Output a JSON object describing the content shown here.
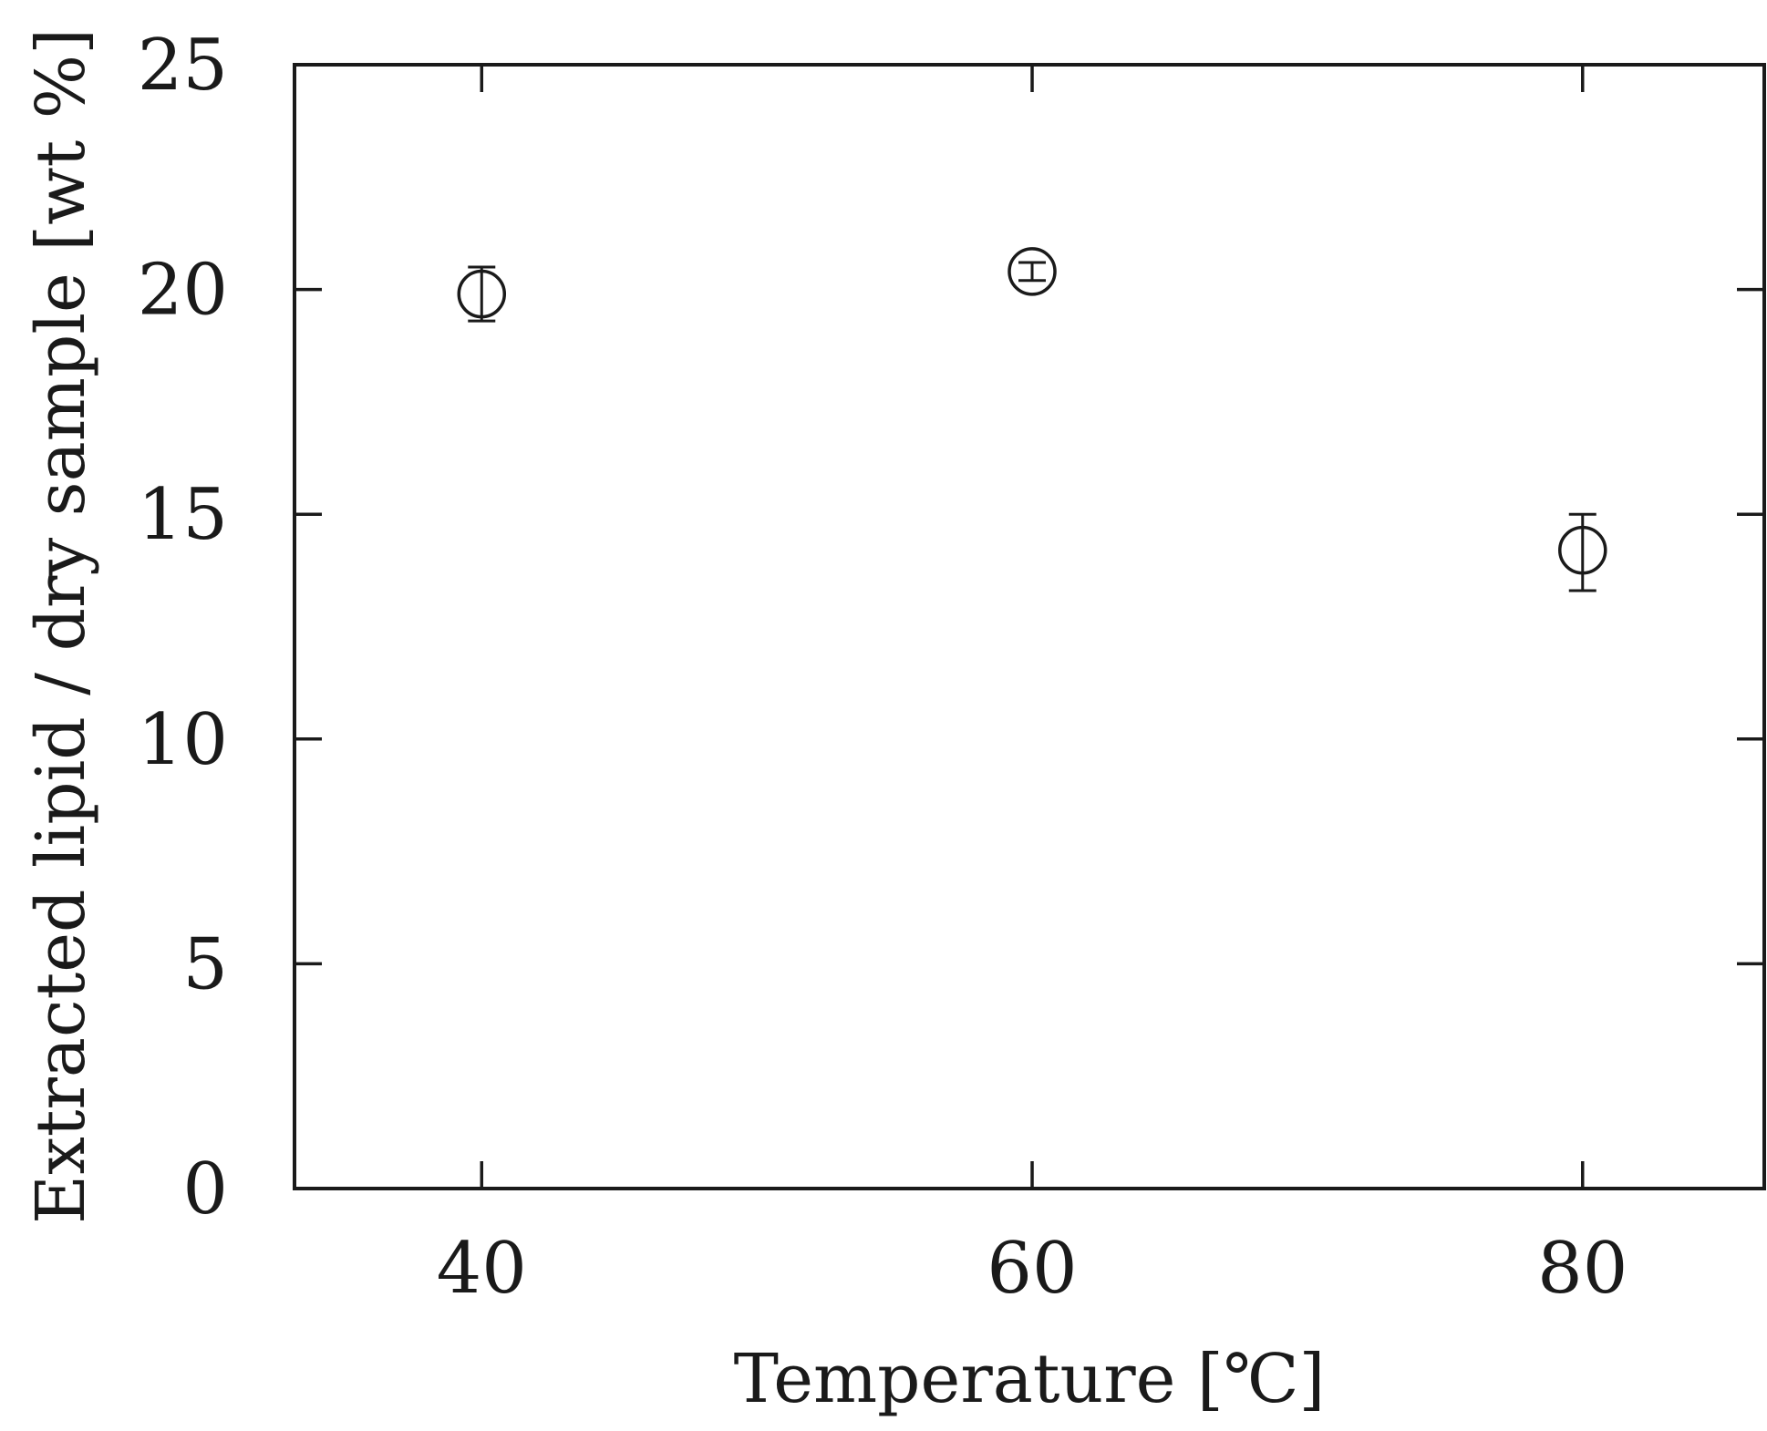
{
  "chart_data": {
    "type": "scatter",
    "xlabel": "Temperature [℃]",
    "ylabel": "Extracted lipid / dry sample [wt %]",
    "xlim": [
      33.2,
      86.6
    ],
    "ylim": [
      0,
      25
    ],
    "x_ticks": [
      40,
      60,
      80
    ],
    "x_tick_labels": [
      "40",
      "60",
      "80"
    ],
    "y_ticks": [
      0,
      5,
      10,
      15,
      20,
      25
    ],
    "y_tick_labels": [
      "0",
      "5",
      "10",
      "15",
      "20",
      "25"
    ],
    "grid": false,
    "marker": "open-circle",
    "colors": {
      "ink": "#1a1a1a",
      "background": "#ffffff"
    },
    "series": [
      {
        "points": [
          {
            "x": 40,
            "y": 19.9,
            "err_low": 19.3,
            "err_high": 20.5
          },
          {
            "x": 60,
            "y": 20.4,
            "err_low": 20.2,
            "err_high": 20.6
          },
          {
            "x": 80,
            "y": 14.2,
            "err_low": 13.3,
            "err_high": 15.0
          }
        ]
      }
    ]
  }
}
